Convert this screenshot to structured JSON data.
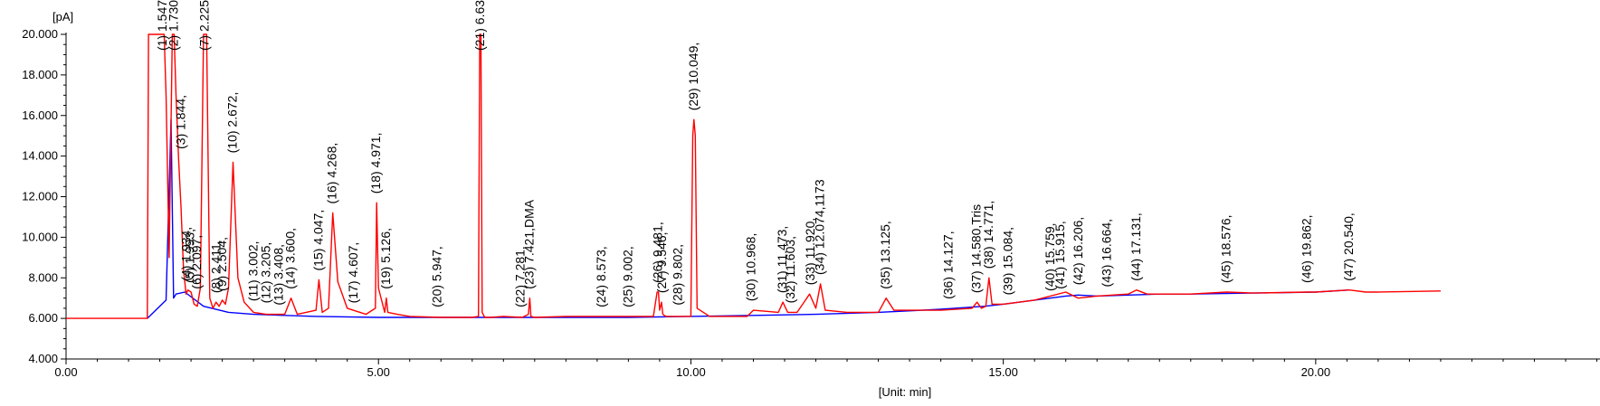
{
  "chart_data": {
    "type": "line",
    "title": "",
    "ylabel": "[pA]",
    "xlabel": "[Unit: min]",
    "xlim": [
      0,
      22
    ],
    "ylim": [
      4,
      20
    ],
    "x_ticks": [
      "0.00",
      "5.00",
      "10.00",
      "15.00",
      "20.00"
    ],
    "x_tick_values": [
      0,
      5,
      10,
      15,
      20
    ],
    "y_ticks": [
      "4.000",
      "6.000",
      "8.000",
      "10.000",
      "12.000",
      "14.000",
      "16.000",
      "18.000",
      "20.000"
    ],
    "y_tick_values": [
      4,
      6,
      8,
      10,
      12,
      14,
      16,
      18,
      20
    ],
    "colors": {
      "signal": "#ff0000",
      "baseline": "#0000ff",
      "axis": "#000000"
    },
    "series": [
      {
        "name": "",
        "color": "#ff0000",
        "x": [
          0,
          1.3,
          1.32,
          1.54,
          1.57,
          1.6,
          1.65,
          1.7,
          1.73,
          1.76,
          1.8,
          1.84,
          1.88,
          1.92,
          1.95,
          2.0,
          2.05,
          2.1,
          2.15,
          2.2,
          2.225,
          2.25,
          2.3,
          2.35,
          2.4,
          2.45,
          2.5,
          2.55,
          2.6,
          2.672,
          2.75,
          2.85,
          3.0,
          3.2,
          3.5,
          3.6,
          3.7,
          4.0,
          4.047,
          4.1,
          4.2,
          4.268,
          4.35,
          4.5,
          4.8,
          4.95,
          4.971,
          5.0,
          5.1,
          5.126,
          5.15,
          5.3,
          5.5,
          6.0,
          6.5,
          6.6,
          6.62,
          6.64,
          6.66,
          6.7,
          6.8,
          7.0,
          7.3,
          7.4,
          7.421,
          7.44,
          7.5,
          8.0,
          8.5,
          9.0,
          9.4,
          9.46,
          9.481,
          9.5,
          9.53,
          9.55,
          9.6,
          9.8,
          10.0,
          10.03,
          10.049,
          10.07,
          10.1,
          10.3,
          10.9,
          11.0,
          11.4,
          11.473,
          11.55,
          11.7,
          11.9,
          12.0,
          12.074,
          12.15,
          12.5,
          13.0,
          13.125,
          13.25,
          14.0,
          14.5,
          14.58,
          14.65,
          14.72,
          14.771,
          14.82,
          15.0,
          15.5,
          16.0,
          16.2,
          16.5,
          17.0,
          17.131,
          17.3,
          18.0,
          18.576,
          19.0,
          19.862,
          20.0,
          20.54,
          20.8,
          21.0,
          22.0
        ],
        "y": [
          6.0,
          6.0,
          20.0,
          20.0,
          20.0,
          17.0,
          9.0,
          20.0,
          20.0,
          17.0,
          13.9,
          11.5,
          8.4,
          7.2,
          7.4,
          7.3,
          6.7,
          6.6,
          7.5,
          20.0,
          20.0,
          20.0,
          7.0,
          6.5,
          6.8,
          6.6,
          6.9,
          6.7,
          7.5,
          13.7,
          8.0,
          6.8,
          6.3,
          6.2,
          6.2,
          7.0,
          6.2,
          6.4,
          7.9,
          6.3,
          6.5,
          11.2,
          7.8,
          6.5,
          6.2,
          6.5,
          11.7,
          7.5,
          6.3,
          7.0,
          6.3,
          6.2,
          6.1,
          6.05,
          6.05,
          6.1,
          20.0,
          20.0,
          6.3,
          6.05,
          6.05,
          6.1,
          6.05,
          6.2,
          7.0,
          6.1,
          6.05,
          6.1,
          6.1,
          6.1,
          6.1,
          7.3,
          7.3,
          6.4,
          6.8,
          6.2,
          6.1,
          6.1,
          6.1,
          15.0,
          15.8,
          15.0,
          6.5,
          6.1,
          6.1,
          6.4,
          6.3,
          6.8,
          6.3,
          6.3,
          7.2,
          6.5,
          7.7,
          6.4,
          6.3,
          6.3,
          7.0,
          6.4,
          6.4,
          6.5,
          6.8,
          6.5,
          6.6,
          8.0,
          6.7,
          6.7,
          6.9,
          7.3,
          7.0,
          7.1,
          7.2,
          7.4,
          7.2,
          7.2,
          7.3,
          7.25,
          7.3,
          7.3,
          7.4,
          7.3,
          7.3,
          7.35
        ]
      },
      {
        "name": "",
        "color": "#0000ff",
        "x": [
          1.3,
          1.6,
          1.68,
          1.72,
          1.76,
          1.9,
          2.2,
          2.6,
          3.0,
          3.5,
          4.0,
          5.0,
          6.0,
          7.0,
          8.0,
          9.0,
          10.0,
          11.0,
          12.0,
          13.0,
          14.0,
          14.7,
          15.0,
          15.5,
          16.0,
          16.2,
          16.5,
          17.0,
          17.5,
          18.0,
          19.0,
          20.0,
          20.54
        ],
        "y": [
          6.0,
          6.9,
          15.8,
          7.0,
          7.2,
          7.3,
          6.6,
          6.3,
          6.2,
          6.15,
          6.1,
          6.05,
          6.05,
          6.05,
          6.05,
          6.05,
          6.1,
          6.15,
          6.2,
          6.3,
          6.45,
          6.6,
          6.7,
          6.9,
          7.1,
          7.15,
          7.1,
          7.15,
          7.2,
          7.2,
          7.25,
          7.3,
          7.4
        ]
      }
    ],
    "peaks": [
      {
        "text": "(1) 1.547,",
        "x": 1.547,
        "y": 20.0
      },
      {
        "text": "(2) 1.730,",
        "x": 1.73,
        "y": 20.0
      },
      {
        "text": "(3) 1.844,",
        "x": 1.844,
        "y": 13.9
      },
      {
        "text": "(4) 1.934,",
        "x": 1.934,
        "y": 7.4
      },
      {
        "text": "(5) 1.993,",
        "x": 1.993,
        "y": 7.3
      },
      {
        "text": "(6) 2.097,",
        "x": 2.097,
        "y": 7.0
      },
      {
        "text": "(7) 2.225,",
        "x": 2.225,
        "y": 20.0
      },
      {
        "text": "(8) 2.411,",
        "x": 2.411,
        "y": 6.8
      },
      {
        "text": "(9) 2.504,",
        "x": 2.504,
        "y": 6.9
      },
      {
        "text": "(10) 2.672,",
        "x": 2.672,
        "y": 13.7
      },
      {
        "text": "(11) 3.002,",
        "x": 3.002,
        "y": 6.4
      },
      {
        "text": "(12) 3.205,",
        "x": 3.205,
        "y": 6.3
      },
      {
        "text": "(13) 3.408,",
        "x": 3.408,
        "y": 6.2
      },
      {
        "text": "(14) 3.600,",
        "x": 3.6,
        "y": 7.0
      },
      {
        "text": "(15) 4.047,",
        "x": 4.047,
        "y": 7.9
      },
      {
        "text": "(16) 4.268,",
        "x": 4.268,
        "y": 11.2
      },
      {
        "text": "(17) 4.607,",
        "x": 4.607,
        "y": 6.3
      },
      {
        "text": "(18) 4.971,",
        "x": 4.971,
        "y": 11.7
      },
      {
        "text": "(19) 5.126,",
        "x": 5.126,
        "y": 7.0
      },
      {
        "text": "(20) 5.947,",
        "x": 5.947,
        "y": 6.1
      },
      {
        "text": "(21) 6.630,",
        "x": 6.63,
        "y": 20.0
      },
      {
        "text": "(22) 7.281,",
        "x": 7.281,
        "y": 6.1
      },
      {
        "text": "(23) 7.421,DMA",
        "x": 7.421,
        "y": 7.0
      },
      {
        "text": "(24) 8.573,",
        "x": 8.573,
        "y": 6.1
      },
      {
        "text": "(25) 9.002,",
        "x": 9.002,
        "y": 6.1
      },
      {
        "text": "(26) 9.481,",
        "x": 9.481,
        "y": 7.3
      },
      {
        "text": "(27) 9.546,",
        "x": 9.546,
        "y": 6.8
      },
      {
        "text": "(28) 9.802,",
        "x": 9.802,
        "y": 6.2
      },
      {
        "text": "(29) 10.049,",
        "x": 10.049,
        "y": 15.8
      },
      {
        "text": "(30) 10.968,",
        "x": 10.968,
        "y": 6.4
      },
      {
        "text": "(31) 11.473,",
        "x": 11.473,
        "y": 6.8
      },
      {
        "text": "(32) 11.603,",
        "x": 11.603,
        "y": 6.3
      },
      {
        "text": "(33) 11.920,",
        "x": 11.92,
        "y": 7.2
      },
      {
        "text": "(34) 12.074,1173",
        "x": 12.074,
        "y": 7.7
      },
      {
        "text": "(35) 13.125,",
        "x": 13.125,
        "y": 7.0
      },
      {
        "text": "(36) 14.127,",
        "x": 14.127,
        "y": 6.5
      },
      {
        "text": "(37) 14.580,Tris",
        "x": 14.58,
        "y": 6.8
      },
      {
        "text": "(38) 14.771,",
        "x": 14.771,
        "y": 8.0
      },
      {
        "text": "(39) 15.084,",
        "x": 15.084,
        "y": 6.7
      },
      {
        "text": "(40) 15.759,",
        "x": 15.759,
        "y": 6.9
      },
      {
        "text": "(41) 15.915,",
        "x": 15.915,
        "y": 7.0
      },
      {
        "text": "(42) 16.206,",
        "x": 16.206,
        "y": 7.2
      },
      {
        "text": "(43) 16.664,",
        "x": 16.664,
        "y": 7.1
      },
      {
        "text": "(44) 17.131,",
        "x": 17.131,
        "y": 7.4
      },
      {
        "text": "(45) 18.576,",
        "x": 18.576,
        "y": 7.3
      },
      {
        "text": "(46) 19.862,",
        "x": 19.862,
        "y": 7.3
      },
      {
        "text": "(47) 20.540,",
        "x": 20.54,
        "y": 7.4
      }
    ]
  }
}
